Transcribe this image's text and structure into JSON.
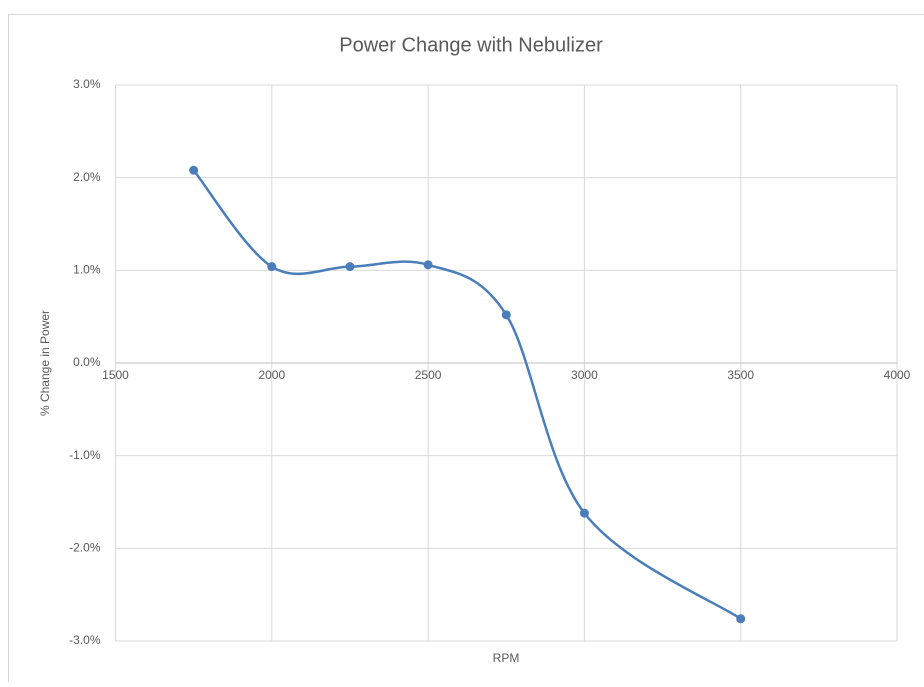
{
  "chart_data": {
    "type": "line",
    "smooth": true,
    "title": "Power Change with Nebulizer",
    "x_label": "RPM",
    "y_label": "% Change in Power",
    "x": [
      1750,
      2000,
      2250,
      2500,
      2750,
      3000,
      3500
    ],
    "series": [
      {
        "name": "% Change in Power",
        "color": "#4a7ebb",
        "values": [
          2.08,
          1.04,
          1.04,
          1.06,
          0.52,
          -1.62,
          -2.76
        ]
      }
    ],
    "xlim": [
      1500,
      4000
    ],
    "xticks": [
      1500,
      2000,
      2500,
      3000,
      3500,
      4000
    ],
    "ylim": [
      -3,
      3
    ],
    "yticks": [
      {
        "value": -3,
        "label": "-3.0%"
      },
      {
        "value": -2,
        "label": "-2.0%"
      },
      {
        "value": -1,
        "label": "-1.0%"
      },
      {
        "value": 0,
        "label": "0.0%"
      },
      {
        "value": 1,
        "label": "1.0%"
      },
      {
        "value": 2,
        "label": "2.0%"
      },
      {
        "value": 3,
        "label": "3.0%"
      }
    ],
    "grid": true
  }
}
